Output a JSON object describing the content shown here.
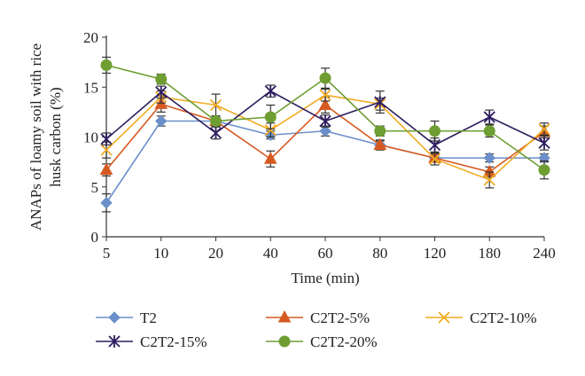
{
  "chart_data": {
    "type": "line",
    "title": "",
    "xlabel": "Time (min)",
    "ylabel_lines": [
      "ANAPs of loamy soil with rice",
      "husk carbon (%)"
    ],
    "categories": [
      "5",
      "10",
      "20",
      "40",
      "60",
      "80",
      "120",
      "180",
      "240"
    ],
    "ylim": [
      0,
      20
    ],
    "yticks": [
      "0",
      "5",
      "10",
      "15",
      "20"
    ],
    "grid": false,
    "legend_position": "bottom",
    "series": [
      {
        "name": "T2",
        "color": "#6b8fc9",
        "marker": "diamond",
        "values": [
          3.4,
          11.6,
          11.6,
          10.2,
          10.6,
          9.2,
          7.9,
          7.9,
          7.9
        ],
        "errors": [
          0.9,
          0.5,
          0.5,
          0.4,
          0.5,
          0.4,
          0.4,
          0.4,
          0.4
        ]
      },
      {
        "name": "C2T2-5%",
        "color": "#d65a20",
        "marker": "triangle",
        "values": [
          6.7,
          13.3,
          11.6,
          7.8,
          13.2,
          9.2,
          7.9,
          6.5,
          10.5
        ],
        "errors": [
          0.6,
          0.8,
          0.5,
          0.8,
          0.8,
          0.5,
          0.4,
          0.5,
          0.6
        ]
      },
      {
        "name": "C2T2-10%",
        "color": "#f0ab24",
        "marker": "x",
        "values": [
          8.7,
          14.0,
          13.2,
          10.7,
          14.2,
          13.3,
          7.8,
          5.7,
          10.8
        ],
        "errors": [
          0.8,
          0.6,
          1.1,
          0.7,
          0.6,
          0.6,
          0.6,
          0.8,
          0.6
        ]
      },
      {
        "name": "C2T2-15%",
        "color": "#2d1d5e",
        "marker": "star",
        "values": [
          9.8,
          14.5,
          10.4,
          14.6,
          11.6,
          13.5,
          9.2,
          12.0,
          9.4
        ],
        "errors": [
          0.6,
          0.6,
          0.6,
          0.6,
          0.6,
          1.1,
          0.7,
          0.7,
          0.7
        ]
      },
      {
        "name": "C2T2-20%",
        "color": "#6e9e32",
        "marker": "circle",
        "values": [
          17.2,
          15.8,
          11.6,
          12.0,
          15.9,
          10.6,
          10.6,
          10.6,
          6.7
        ],
        "errors": [
          0.8,
          0.5,
          0.5,
          1.2,
          1.0,
          0.5,
          1.0,
          0.6,
          0.9
        ]
      }
    ]
  }
}
